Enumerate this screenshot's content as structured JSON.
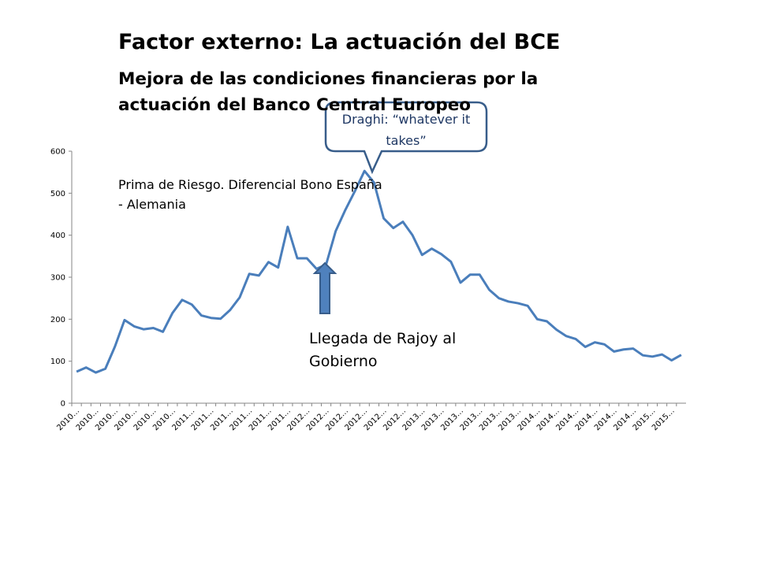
{
  "chart_data": {
    "type": "line",
    "title": "Factor externo: La actuación del BCE",
    "subtitle": "Mejora de las condiciones financieras por la actuación del Banco Central Europeo",
    "series_label": "Prima de Riesgo. Diferencial Bono España - Alemania",
    "annotations": [
      "Draghi: “whatever it takes”",
      "Llegada de Rajoy al Gobierno"
    ],
    "categories": [
      "2010…",
      null,
      "2010…",
      null,
      "2010…",
      null,
      "2010…",
      null,
      "2010…",
      null,
      "2010…",
      null,
      "2011…",
      null,
      "2011…",
      null,
      "2011…",
      null,
      "2011…",
      null,
      "2011…",
      null,
      "2011…",
      null,
      "2012…",
      null,
      "2012…",
      null,
      "2012…",
      null,
      "2012…",
      null,
      "2012…",
      null,
      "2012…",
      null,
      "2013…",
      null,
      "2013…",
      null,
      "2013…",
      null,
      "2013…",
      null,
      "2013…",
      null,
      "2013…",
      null,
      "2014…",
      null,
      "2014…",
      null,
      "2014…",
      null,
      "2014…",
      null,
      "2014…",
      null,
      "2014…",
      null,
      "2015…",
      null,
      "2015…",
      null
    ],
    "values": [
      75,
      85,
      73,
      82,
      135,
      198,
      183,
      176,
      179,
      170,
      215,
      246,
      235,
      209,
      203,
      201,
      222,
      252,
      308,
      304,
      336,
      323,
      420,
      345,
      345,
      320,
      330,
      410,
      460,
      505,
      553,
      525,
      440,
      417,
      432,
      400,
      353,
      368,
      355,
      337,
      287,
      306,
      306,
      270,
      250,
      242,
      238,
      232,
      200,
      195,
      175,
      160,
      153,
      134,
      145,
      140,
      123,
      128,
      130,
      114,
      111,
      116,
      102,
      115
    ],
    "color": "#4a7ebb",
    "ylim": [
      0,
      600
    ],
    "yticks": [
      0,
      100,
      200,
      300,
      400,
      500,
      600
    ],
    "grid": false
  }
}
